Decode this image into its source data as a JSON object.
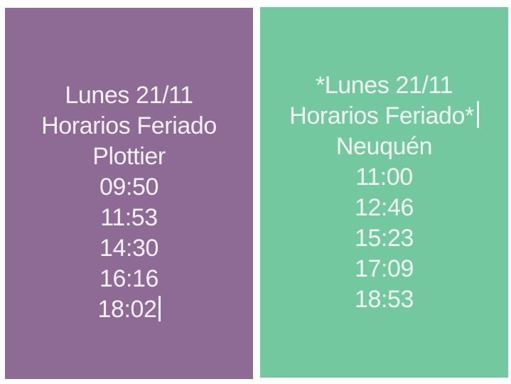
{
  "collage": {
    "background": "#ffffff"
  },
  "panels": {
    "left": {
      "background": "#8d6b94",
      "text_color": "#f7f0f8",
      "lines": [
        "Lunes 21/11",
        "Horarios Feriado",
        "Plottier"
      ],
      "times": [
        "09:50",
        "11:53",
        "14:30",
        "16:16",
        "18:02"
      ],
      "cursor_after": "18:02"
    },
    "right": {
      "background": "#74c89f",
      "text_color": "#eefaf3",
      "lines": [
        "*Lunes 21/11",
        "Horarios Feriado*",
        "Neuquén"
      ],
      "times": [
        "11:00",
        "12:46",
        "15:23",
        "17:09",
        "18:53"
      ],
      "cursor_after": "Horarios Feriado*"
    }
  }
}
